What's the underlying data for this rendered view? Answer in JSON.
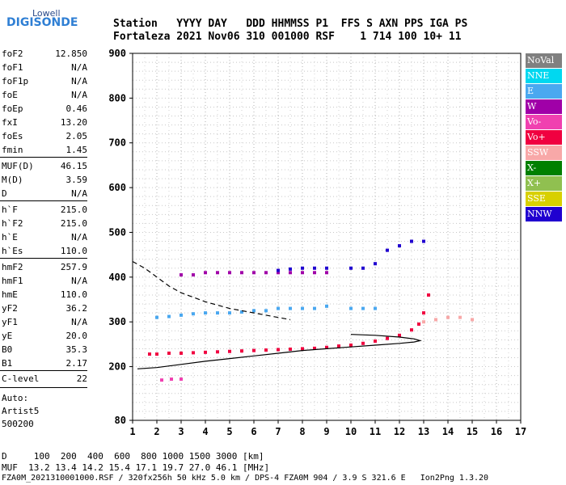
{
  "logo": {
    "line1": "Lowell",
    "line2": "DIGISONDE"
  },
  "header": {
    "line1": "Station   YYYY DAY   DDD HHMMSS P1  FFS S AXN PPS IGA PS",
    "line2": "Fortaleza 2021 Nov06 310 001000 RSF    1 714 100 10+ 11"
  },
  "parameters": {
    "group1": [
      {
        "label": "foF2",
        "value": "12.850"
      },
      {
        "label": "foF1",
        "value": "N/A"
      },
      {
        "label": "foF1p",
        "value": "N/A"
      },
      {
        "label": "foE",
        "value": "N/A"
      },
      {
        "label": "foEp",
        "value": "0.46"
      },
      {
        "label": "fxI",
        "value": "13.20"
      },
      {
        "label": "foEs",
        "value": "2.05"
      },
      {
        "label": "fmin",
        "value": "1.45"
      }
    ],
    "group2": [
      {
        "label": "MUF(D)",
        "value": "46.15"
      },
      {
        "label": "M(D)",
        "value": "3.59"
      },
      {
        "label": "D",
        "value": "N/A"
      }
    ],
    "group3": [
      {
        "label": "h`F",
        "value": "215.0"
      },
      {
        "label": "h`F2",
        "value": "215.0"
      },
      {
        "label": "h`E",
        "value": "N/A"
      },
      {
        "label": "h`Es",
        "value": "110.0"
      }
    ],
    "group4": [
      {
        "label": "hmF2",
        "value": "257.9"
      },
      {
        "label": "hmF1",
        "value": "N/A"
      },
      {
        "label": "hmE",
        "value": "110.0"
      },
      {
        "label": "yF2",
        "value": "36.2"
      },
      {
        "label": "yF1",
        "value": "N/A"
      },
      {
        "label": "yE",
        "value": "20.0"
      },
      {
        "label": "B0",
        "value": "35.3"
      },
      {
        "label": "B1",
        "value": "2.17"
      }
    ],
    "group5": [
      {
        "label": "C-level",
        "value": "22"
      }
    ]
  },
  "autoscaling": {
    "line1": "Auto:",
    "line2": "Artist5",
    "line3": "500200"
  },
  "footer": {
    "line1": "D     100  200  400  600  800 1000 1500 3000 [km]",
    "line2": "MUF  13.2 13.4 14.2 15.4 17.1 19.7 27.0 46.1 [MHz]",
    "line3": "FZA0M_2021310001000.RSF / 320fx256h 50 kHz 5.0 km / DPS-4 FZA0M 904 / 3.9 S 321.6 E   Ion2Png 1.3.20"
  },
  "legend": [
    {
      "label": "NoVal",
      "color": "#808080"
    },
    {
      "label": "NNE",
      "color": "#00d8f0"
    },
    {
      "label": "E",
      "color": "#4aa8f0"
    },
    {
      "label": "W",
      "color": "#a000a8"
    },
    {
      "label": "Vo-",
      "color": "#f040b0"
    },
    {
      "label": "Vo+",
      "color": "#f00040"
    },
    {
      "label": "SSW",
      "color": "#f8a8a8"
    },
    {
      "label": "X-",
      "color": "#008000"
    },
    {
      "label": "X+",
      "color": "#90c050"
    },
    {
      "label": "SSE",
      "color": "#d8d000"
    },
    {
      "label": "NNW",
      "color": "#2000d0"
    }
  ],
  "chart_data": {
    "type": "scatter",
    "xlim": [
      1,
      17
    ],
    "ylim": [
      80,
      900
    ],
    "x_ticks": [
      1,
      2,
      3,
      4,
      5,
      6,
      7,
      8,
      9,
      10,
      11,
      12,
      13,
      14,
      15,
      16,
      17
    ],
    "y_ticks": [
      80,
      200,
      300,
      400,
      500,
      600,
      700,
      800,
      900
    ],
    "grid": true,
    "series": [
      {
        "name": "Vo+",
        "color": "#f00040",
        "x": [
          1.7,
          2.0,
          2.5,
          3.0,
          3.5,
          4.0,
          4.5,
          5.0,
          5.5,
          6.0,
          6.5,
          7.0,
          7.5,
          8.0,
          8.5,
          9.0,
          9.5,
          10.0,
          10.5,
          11.0,
          11.5,
          12.0,
          12.5,
          12.8,
          13.0,
          13.2
        ],
        "y": [
          228,
          228,
          230,
          230,
          231,
          232,
          233,
          234,
          235,
          236,
          237,
          238,
          239,
          240,
          241,
          243,
          246,
          248,
          252,
          257,
          263,
          270,
          282,
          295,
          320,
          360
        ]
      },
      {
        "name": "E",
        "color": "#4aa8f0",
        "x": [
          2.0,
          2.5,
          3.0,
          3.5,
          4.0,
          4.5,
          5.0,
          5.5,
          6.0,
          6.5,
          7.0,
          7.5,
          8.0,
          8.5,
          9.0,
          10.0,
          10.5,
          11.0
        ],
        "y": [
          310,
          312,
          315,
          318,
          320,
          320,
          320,
          322,
          325,
          325,
          330,
          330,
          330,
          330,
          335,
          330,
          330,
          330
        ]
      },
      {
        "name": "W",
        "color": "#a000a8",
        "x": [
          3.0,
          3.5,
          4.0,
          4.5,
          5.0,
          5.5,
          6.0,
          6.5,
          7.0,
          7.5,
          8.0,
          8.5,
          9.0
        ],
        "y": [
          405,
          405,
          410,
          410,
          410,
          410,
          410,
          410,
          410,
          410,
          410,
          410,
          410
        ]
      },
      {
        "name": "NNW",
        "color": "#2000d0",
        "x": [
          7.0,
          7.5,
          8.0,
          8.5,
          9.0,
          10.0,
          10.5,
          11.0,
          11.5,
          12.0,
          12.5,
          13.0
        ],
        "y": [
          415,
          418,
          420,
          420,
          420,
          420,
          420,
          430,
          460,
          470,
          480,
          480
        ]
      },
      {
        "name": "SSW",
        "color": "#f8a8a8",
        "x": [
          13.0,
          13.5,
          14.0,
          14.5,
          15.0
        ],
        "y": [
          300,
          305,
          310,
          310,
          305
        ]
      },
      {
        "name": "Vo-",
        "color": "#f040b0",
        "x": [
          2.2,
          2.6,
          3.0
        ],
        "y": [
          170,
          172,
          172
        ]
      }
    ],
    "curves": [
      {
        "name": "profile_solid",
        "style": "solid",
        "x": [
          1.2,
          2,
          3,
          4,
          5,
          6,
          7,
          8,
          9,
          10,
          11,
          12,
          12.6,
          12.85,
          12.6,
          12.0,
          11.0,
          10.0
        ],
        "y": [
          195,
          198,
          205,
          212,
          218,
          224,
          230,
          236,
          240,
          244,
          248,
          252,
          255,
          258,
          262,
          266,
          270,
          272
        ]
      },
      {
        "name": "profile_dashed",
        "style": "dashed",
        "x": [
          1.0,
          1.5,
          2.0,
          2.5,
          3.0,
          4.0,
          5.0,
          6.0,
          7.0,
          7.5
        ],
        "y": [
          435,
          420,
          400,
          380,
          365,
          345,
          330,
          320,
          310,
          305
        ]
      }
    ]
  }
}
